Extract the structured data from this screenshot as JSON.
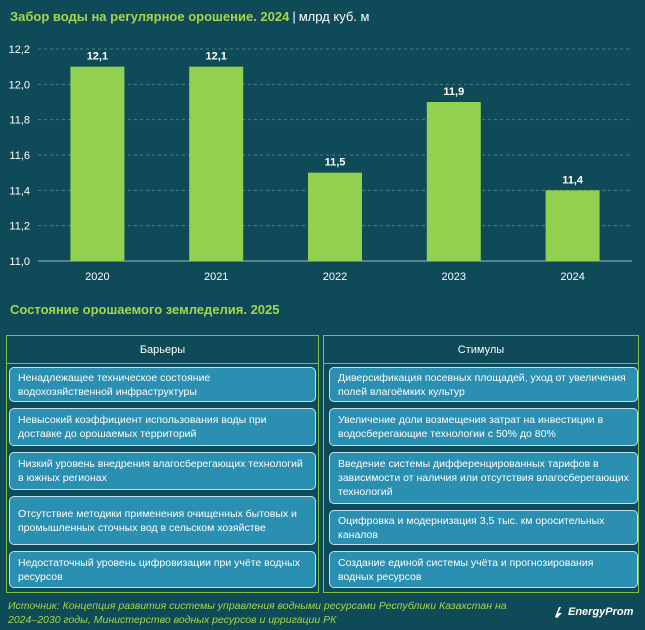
{
  "title": {
    "main": "Забор воды на регулярное орошение. 2024",
    "separator": "|",
    "unit": "млрд куб. м"
  },
  "chart_data": {
    "type": "bar",
    "categories": [
      "2020",
      "2021",
      "2022",
      "2023",
      "2024"
    ],
    "values": [
      12.1,
      12.1,
      11.5,
      11.9,
      11.4
    ],
    "value_labels": [
      "12,1",
      "12,1",
      "11,5",
      "11,9",
      "11,4"
    ],
    "ylim": [
      11.0,
      12.2
    ],
    "yticks": [
      "11,0",
      "11,2",
      "11,4",
      "11,6",
      "11,8",
      "12,0",
      "12,2"
    ],
    "grid": true,
    "bar_color": "#92d050"
  },
  "section": {
    "title": "Состояние орошаемого земледелия. 2025",
    "barriers_header": "Барьеры",
    "stimuli_header": "Стимулы",
    "barriers": [
      "Ненадлежащее техническое состояние водохозяйственной инфраструктуры",
      "Невысокий коэффициент использования воды при доставке до орошаемых территорий",
      "Низкий уровень внедрения влагосберегающих технологий в южных регионах",
      "Отсутствие методики применения очищенных бытовых и промышленных сточных вод в сельском хозяйстве",
      "Недостаточный уровень цифровизации при учёте водных ресурсов"
    ],
    "stimuli": [
      "Диверсификация посевных площадей, уход от увеличения полей влагоёмких культур",
      "Увеличение доли возмещения затрат на инвестиции в водосберегающие технологии с 50% до 80%",
      "Введение системы дифференцированных тарифов в зависимости от наличия или отсутствия влагосберегающих технологий",
      "Оцифровка и модернизация 3,5 тыс. км оросительных каналов",
      "Создание единой системы учёта и прогнозирования водных ресурсов"
    ]
  },
  "source": "Источник: Концепция развития системы управления водными ресурсами Республики Казахстан на 2024–2030 годы, Министерство водных ресурсов и ирригации РК",
  "logo": {
    "text": "EnergyProm",
    "icon": "energyprom-logo-icon"
  },
  "colors": {
    "background": "#0f4a58",
    "accent": "#a8d64a",
    "card": "#2a8fb0"
  }
}
